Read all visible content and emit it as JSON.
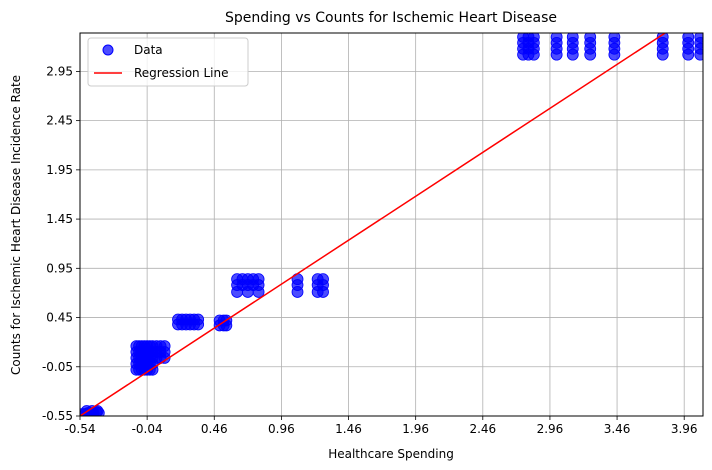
{
  "chart_data": {
    "type": "scatter",
    "title": "Spending vs Counts for Ischemic Heart Disease",
    "xlabel": "Healthcare Spending",
    "ylabel": "Counts for Ischemic Heart Disease Incidence Rate",
    "xlim": [
      -0.54,
      4.1
    ],
    "ylim": [
      -0.55,
      3.34
    ],
    "xticks": [
      -0.54,
      -0.04,
      0.46,
      0.96,
      1.46,
      1.96,
      2.46,
      2.96,
      3.46,
      3.96
    ],
    "xtick_labels": [
      "-0.54",
      "-0.04",
      "0.46",
      "0.96",
      "1.46",
      "1.96",
      "2.46",
      "2.96",
      "3.46",
      "3.96"
    ],
    "yticks": [
      -0.55,
      -0.05,
      0.45,
      0.95,
      1.45,
      1.95,
      2.45,
      2.95
    ],
    "ytick_labels": [
      "-0.55",
      "-0.05",
      "0.45",
      "0.95",
      "1.45",
      "1.95",
      "2.45",
      "2.95"
    ],
    "grid": true,
    "legend_position": "top-left",
    "colors": {
      "points": "#0000ff",
      "line": "#ff0000",
      "grid": "#b0b0b0"
    },
    "series": [
      {
        "name": "Data",
        "points": [
          [
            -0.5,
            -0.53
          ],
          [
            -0.48,
            -0.52
          ],
          [
            -0.46,
            -0.53
          ],
          [
            -0.44,
            -0.52
          ],
          [
            -0.42,
            -0.51
          ],
          [
            -0.4,
            -0.52
          ],
          [
            -0.49,
            -0.5
          ],
          [
            -0.45,
            -0.5
          ],
          [
            -0.41,
            -0.5
          ],
          [
            -0.52,
            -0.53
          ],
          [
            -0.12,
            0.16
          ],
          [
            -0.12,
            0.1
          ],
          [
            -0.12,
            0.04
          ],
          [
            -0.12,
            -0.02
          ],
          [
            -0.12,
            -0.08
          ],
          [
            -0.1,
            0.16
          ],
          [
            -0.1,
            0.1
          ],
          [
            -0.1,
            0.04
          ],
          [
            -0.1,
            -0.02
          ],
          [
            -0.1,
            -0.08
          ],
          [
            -0.08,
            0.16
          ],
          [
            -0.08,
            0.1
          ],
          [
            -0.08,
            0.04
          ],
          [
            -0.08,
            -0.02
          ],
          [
            -0.08,
            -0.08
          ],
          [
            -0.06,
            0.16
          ],
          [
            -0.06,
            0.1
          ],
          [
            -0.06,
            0.04
          ],
          [
            -0.06,
            -0.02
          ],
          [
            -0.06,
            -0.08
          ],
          [
            -0.04,
            0.16
          ],
          [
            -0.04,
            0.1
          ],
          [
            -0.04,
            0.04
          ],
          [
            -0.04,
            -0.02
          ],
          [
            -0.04,
            -0.08
          ],
          [
            -0.02,
            0.16
          ],
          [
            -0.02,
            0.1
          ],
          [
            -0.02,
            0.04
          ],
          [
            -0.02,
            -0.02
          ],
          [
            -0.02,
            -0.08
          ],
          [
            0.0,
            0.16
          ],
          [
            0.0,
            0.1
          ],
          [
            0.0,
            0.04
          ],
          [
            0.0,
            -0.02
          ],
          [
            0.0,
            -0.08
          ],
          [
            0.03,
            0.16
          ],
          [
            0.03,
            0.1
          ],
          [
            0.03,
            0.04
          ],
          [
            0.06,
            0.16
          ],
          [
            0.06,
            0.1
          ],
          [
            0.06,
            0.04
          ],
          [
            0.09,
            0.16
          ],
          [
            0.09,
            0.1
          ],
          [
            0.09,
            0.04
          ],
          [
            0.19,
            0.38
          ],
          [
            0.19,
            0.43
          ],
          [
            0.22,
            0.38
          ],
          [
            0.22,
            0.43
          ],
          [
            0.25,
            0.38
          ],
          [
            0.25,
            0.43
          ],
          [
            0.28,
            0.38
          ],
          [
            0.28,
            0.43
          ],
          [
            0.31,
            0.38
          ],
          [
            0.31,
            0.43
          ],
          [
            0.34,
            0.38
          ],
          [
            0.34,
            0.43
          ],
          [
            0.5,
            0.37
          ],
          [
            0.5,
            0.42
          ],
          [
            0.53,
            0.37
          ],
          [
            0.53,
            0.42
          ],
          [
            0.55,
            0.37
          ],
          [
            0.55,
            0.42
          ],
          [
            0.63,
            0.84
          ],
          [
            0.63,
            0.78
          ],
          [
            0.63,
            0.71
          ],
          [
            0.67,
            0.84
          ],
          [
            0.67,
            0.78
          ],
          [
            0.71,
            0.84
          ],
          [
            0.71,
            0.78
          ],
          [
            0.71,
            0.71
          ],
          [
            0.75,
            0.84
          ],
          [
            0.75,
            0.78
          ],
          [
            0.79,
            0.84
          ],
          [
            0.79,
            0.78
          ],
          [
            0.79,
            0.71
          ],
          [
            1.08,
            0.84
          ],
          [
            1.08,
            0.78
          ],
          [
            1.08,
            0.71
          ],
          [
            1.23,
            0.84
          ],
          [
            1.23,
            0.78
          ],
          [
            1.23,
            0.71
          ],
          [
            1.27,
            0.84
          ],
          [
            1.27,
            0.78
          ],
          [
            1.27,
            0.71
          ],
          [
            2.76,
            3.3
          ],
          [
            2.76,
            3.24
          ],
          [
            2.76,
            3.18
          ],
          [
            2.76,
            3.12
          ],
          [
            2.8,
            3.3
          ],
          [
            2.8,
            3.24
          ],
          [
            2.8,
            3.18
          ],
          [
            2.8,
            3.12
          ],
          [
            2.84,
            3.3
          ],
          [
            2.84,
            3.24
          ],
          [
            2.84,
            3.18
          ],
          [
            2.84,
            3.12
          ],
          [
            3.01,
            3.3
          ],
          [
            3.01,
            3.24
          ],
          [
            3.01,
            3.18
          ],
          [
            3.01,
            3.12
          ],
          [
            3.13,
            3.3
          ],
          [
            3.13,
            3.24
          ],
          [
            3.13,
            3.18
          ],
          [
            3.13,
            3.12
          ],
          [
            3.26,
            3.3
          ],
          [
            3.26,
            3.24
          ],
          [
            3.26,
            3.18
          ],
          [
            3.26,
            3.12
          ],
          [
            3.44,
            3.3
          ],
          [
            3.44,
            3.24
          ],
          [
            3.44,
            3.18
          ],
          [
            3.44,
            3.12
          ],
          [
            3.8,
            3.3
          ],
          [
            3.8,
            3.24
          ],
          [
            3.8,
            3.18
          ],
          [
            3.8,
            3.12
          ],
          [
            3.99,
            3.3
          ],
          [
            3.99,
            3.24
          ],
          [
            3.99,
            3.18
          ],
          [
            3.99,
            3.12
          ],
          [
            4.08,
            3.3
          ],
          [
            4.08,
            3.24
          ],
          [
            4.08,
            3.18
          ],
          [
            4.08,
            3.12
          ]
        ]
      },
      {
        "name": "Regression Line",
        "line": [
          [
            -0.54,
            -0.55
          ],
          [
            3.84,
            3.36
          ]
        ]
      }
    ]
  }
}
